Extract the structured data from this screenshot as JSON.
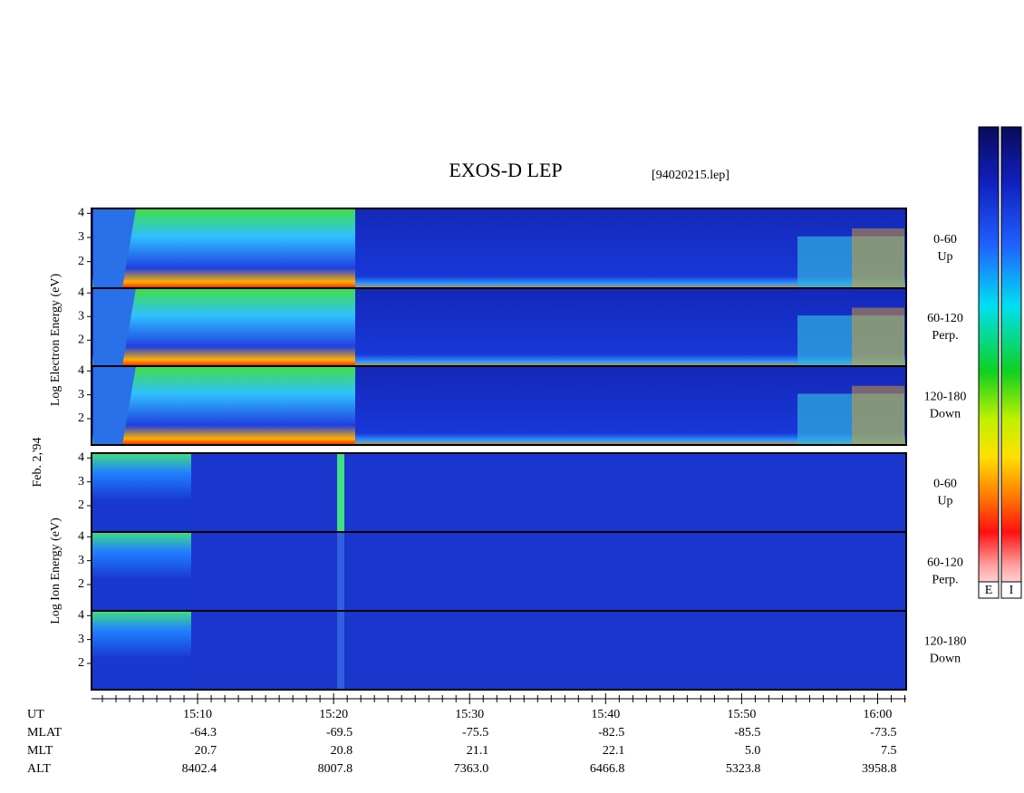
{
  "chart_data": {
    "type": "spectrogram",
    "title": "EXOS-D LEP",
    "subtitle": "[94020215.lep]",
    "date_label": "Feb. 2,'94",
    "y_labels": [
      "Log Electron Energy (eV)",
      "Log Ion Energy (eV)"
    ],
    "panels": [
      {
        "angle": "0-60",
        "direction": "Up",
        "ylim": [
          0.9,
          4.2
        ],
        "yticks": [
          2,
          3,
          4
        ]
      },
      {
        "angle": "60-120",
        "direction": "Perp.",
        "ylim": [
          0.9,
          4.2
        ],
        "yticks": [
          2,
          3,
          4
        ]
      },
      {
        "angle": "120-180",
        "direction": "Down",
        "ylim": [
          0.9,
          4.2
        ],
        "yticks": [
          2,
          3,
          4
        ]
      },
      {
        "angle": "0-60",
        "direction": "Up",
        "ylim": [
          0.9,
          4.2
        ],
        "yticks": [
          2,
          3,
          4
        ]
      },
      {
        "angle": "60-120",
        "direction": "Perp.",
        "ylim": [
          0.9,
          4.2
        ],
        "yticks": [
          2,
          3,
          4
        ]
      },
      {
        "angle": "120-180",
        "direction": "Down",
        "ylim": [
          0.9,
          4.2
        ],
        "yticks": [
          2,
          3,
          4
        ]
      }
    ],
    "x_label": "UT",
    "xlim": [
      902.2,
      962.1
    ],
    "xticks": [
      {
        "value": 910,
        "label": "15:10"
      },
      {
        "value": 920,
        "label": "15:20"
      },
      {
        "value": 930,
        "label": "15:30"
      },
      {
        "value": 940,
        "label": "15:40"
      },
      {
        "value": 950,
        "label": "15:50"
      },
      {
        "value": 960,
        "label": "16:00"
      }
    ],
    "minor_xticks": [
      903,
      904,
      905,
      906,
      907,
      908,
      909,
      911,
      912,
      913,
      914,
      915,
      916,
      917,
      918,
      919,
      921,
      922,
      923,
      924,
      925,
      926,
      927,
      928,
      929,
      931,
      932,
      933,
      934,
      935,
      936,
      937,
      938,
      939,
      941,
      942,
      943,
      944,
      945,
      946,
      947,
      948,
      949,
      951,
      952,
      953,
      954,
      955,
      956,
      957,
      958,
      959,
      961,
      962
    ],
    "ephemeris": [
      {
        "label": "MLAT",
        "values": [
          "-64.3",
          "-69.5",
          "-75.5",
          "-82.5",
          "-85.5",
          "-73.5"
        ]
      },
      {
        "label": "MLT",
        "values": [
          "20.7",
          "20.8",
          "21.1",
          "22.1",
          "5.0",
          "7.5"
        ]
      },
      {
        "label": "ALT",
        "values": [
          "8402.4",
          "8007.8",
          "7363.0",
          "6466.8",
          "5323.8",
          "3958.8"
        ]
      }
    ],
    "colorbar_labels": [
      "E",
      "I"
    ]
  }
}
